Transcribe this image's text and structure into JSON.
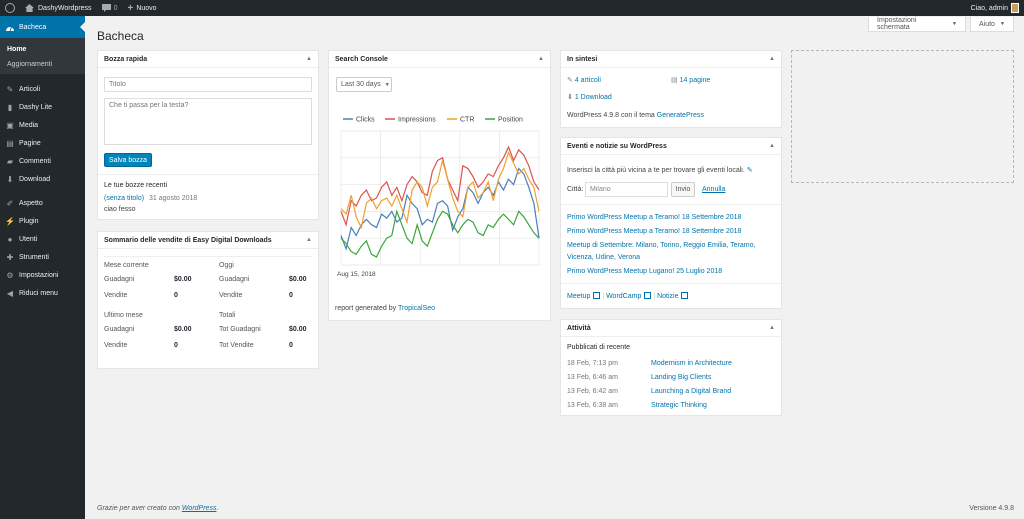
{
  "adminbar": {
    "site_name": "DashyWordpress",
    "comments_count": "0",
    "new_label": "Nuovo",
    "greeting": "Ciao, admin"
  },
  "sidebar": {
    "current": "Bacheca",
    "submenu": [
      "Home",
      "Aggiornamenti"
    ],
    "items": [
      {
        "label": "Articoli",
        "icon": "pin-icon"
      },
      {
        "label": "Dashy Lite",
        "icon": "chart-icon"
      },
      {
        "label": "Media",
        "icon": "media-icon"
      },
      {
        "label": "Pagine",
        "icon": "page-icon"
      },
      {
        "label": "Commenti",
        "icon": "comment-icon"
      },
      {
        "label": "Download",
        "icon": "download-icon"
      }
    ],
    "items2": [
      {
        "label": "Aspetto",
        "icon": "brush-icon"
      },
      {
        "label": "Plugin",
        "icon": "plugin-icon"
      },
      {
        "label": "Utenti",
        "icon": "user-icon"
      },
      {
        "label": "Strumenti",
        "icon": "wrench-icon"
      },
      {
        "label": "Impostazioni",
        "icon": "settings-icon"
      },
      {
        "label": "Riduci menu",
        "icon": "collapse-icon"
      }
    ]
  },
  "screen_options": "Impostazioni schermata",
  "help": "Aiuto",
  "page_title": "Bacheca",
  "quick_draft": {
    "title": "Bozza rapida",
    "title_placeholder": "Titolo",
    "content_placeholder": "Che ti passa per la testa?",
    "save_button": "Salva bozza",
    "recent_heading": "Le tue bozze recenti",
    "draft_link": "(senza titolo)",
    "draft_date": "31 agosto 2018",
    "draft_excerpt": "ciao fesso"
  },
  "edd": {
    "title": "Sommario delle vendite di Easy Digital Downloads",
    "blocks": [
      {
        "heading": "Mese corrente",
        "earnings_label": "Guadagni",
        "earnings": "$0.00",
        "sales_label": "Vendite",
        "sales": "0"
      },
      {
        "heading": "Oggi",
        "earnings_label": "Guadagni",
        "earnings": "$0.00",
        "sales_label": "Vendite",
        "sales": "0"
      },
      {
        "heading": "Ultimo mese",
        "earnings_label": "Guadagni",
        "earnings": "$0.00",
        "sales_label": "Vendite",
        "sales": "0"
      },
      {
        "heading": "Totali",
        "earnings_label": "Tot Guadagni",
        "earnings": "$0.00",
        "sales_label": "Tot Vendite",
        "sales": "0"
      }
    ]
  },
  "search_console": {
    "title": "Search Console",
    "range": "Last 30 days",
    "footer_text": "report generated by",
    "footer_link": "TropicalSeo"
  },
  "chart_data": {
    "type": "line",
    "x_start_label": "Aug 15, 2018",
    "legend_position": "top",
    "grid": true,
    "series": [
      {
        "name": "Clicks",
        "color": "#4a7ebb",
        "values": [
          22,
          12,
          28,
          22,
          30,
          34,
          30,
          28,
          38,
          35,
          40,
          32,
          35,
          52,
          46,
          42,
          30,
          34,
          32,
          46,
          48,
          44,
          26,
          36,
          42,
          58,
          54,
          46,
          54,
          58,
          52,
          62,
          56,
          64,
          60,
          72,
          68,
          58,
          46,
          20
        ]
      },
      {
        "name": "Impressions",
        "color": "#d9534f",
        "values": [
          40,
          30,
          48,
          44,
          52,
          56,
          48,
          50,
          58,
          62,
          52,
          58,
          48,
          60,
          66,
          62,
          54,
          52,
          70,
          78,
          80,
          64,
          56,
          48,
          74,
          72,
          66,
          58,
          62,
          68,
          66,
          74,
          80,
          88,
          78,
          86,
          82,
          74,
          62,
          56
        ]
      },
      {
        "name": "CTR",
        "color": "#f0a030",
        "values": [
          42,
          38,
          52,
          36,
          28,
          46,
          50,
          42,
          48,
          50,
          44,
          52,
          42,
          32,
          56,
          62,
          58,
          44,
          58,
          62,
          78,
          64,
          50,
          40,
          36,
          58,
          62,
          50,
          54,
          62,
          48,
          64,
          72,
          84,
          76,
          68,
          72,
          64,
          58,
          40
        ]
      },
      {
        "name": "Position",
        "color": "#3aa63a",
        "values": [
          20,
          16,
          10,
          8,
          14,
          18,
          8,
          6,
          14,
          20,
          22,
          40,
          30,
          20,
          16,
          30,
          18,
          14,
          24,
          34,
          40,
          38,
          30,
          24,
          30,
          34,
          32,
          24,
          22,
          30,
          28,
          34,
          38,
          34,
          30,
          40,
          36,
          30,
          24,
          20
        ]
      }
    ],
    "ylim": [
      0,
      100
    ]
  },
  "at_a_glance": {
    "title": "In sintesi",
    "posts": "4 articoli",
    "pages": "14 pagine",
    "downloads": "1 Download",
    "version_text": "WordPress 4.9.8 con il tema",
    "theme_link": "GeneratePress"
  },
  "events": {
    "title": "Eventi e notizie su WordPress",
    "intro": "Inserisci la città più vicina a te per trovare gli eventi locali.",
    "city_label": "Città:",
    "city_value": "Milano",
    "send_button": "Invio",
    "cancel_link": "Annulla",
    "items": [
      "Primo WordPress Meetup a Teramo! 18 Settembre 2018",
      "Primo WordPress Meetup a Teramo! 18 Settembre 2018",
      "Meetup di Settembre: Milano, Torino, Reggio Emilia, Teramo,",
      "Vicenza, Udine, Verona",
      "Primo WordPress Meetup Lugano! 25 Luglio 2018"
    ],
    "links": [
      "Meetup",
      "WordCamp",
      "Notizie"
    ]
  },
  "activity": {
    "title": "Attività",
    "heading": "Pubblicati di recente",
    "rows": [
      {
        "date": "18 Feb, 7:13 pm",
        "title": "Modernism in Architecture"
      },
      {
        "date": "13 Feb, 6:46 am",
        "title": "Landing Big Clients"
      },
      {
        "date": "13 Feb, 6:42 am",
        "title": "Launching a Digital Brand"
      },
      {
        "date": "13 Feb, 6:38 am",
        "title": "Strategic Thinking"
      }
    ]
  },
  "footer": {
    "thanks": "Grazie per aver creato con",
    "wp_link": "WordPress",
    "version": "Versione 4.9.8"
  }
}
